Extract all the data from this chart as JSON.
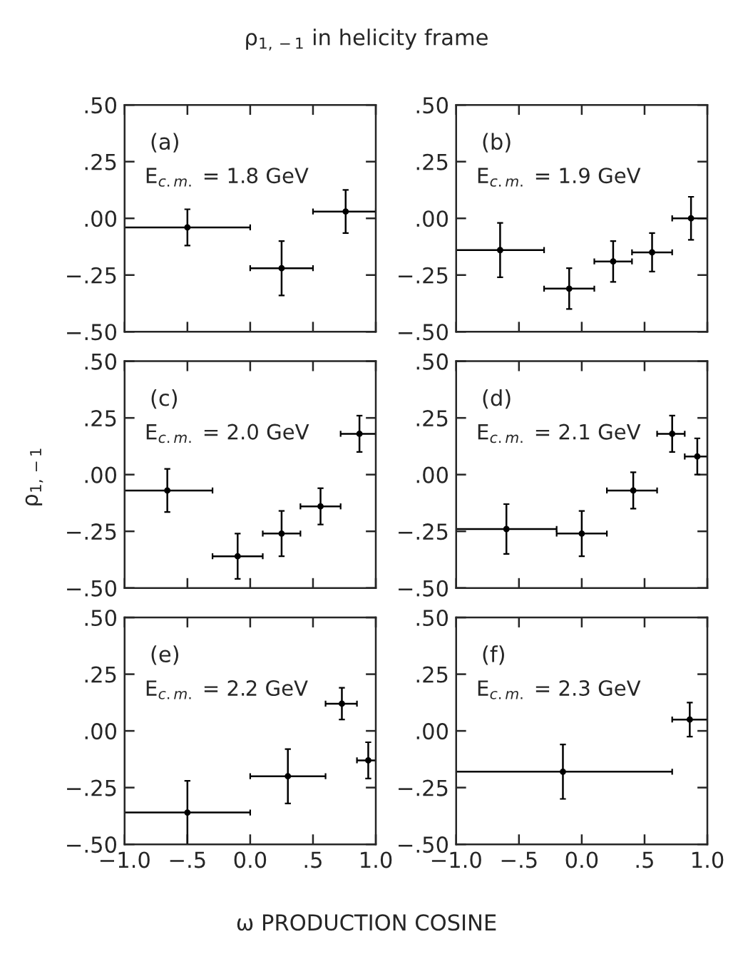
{
  "chart_data": [
    {
      "type": "scatter",
      "title": "ρ$_{1,−1}$ in helicity frame",
      "ylabel": "ρ$_{1,−1}$",
      "xlabel": "ω PRODUCTION COSINE",
      "annotations": [
        "(a)",
        "E$_{c.m.}$ = 1.8 GeV"
      ],
      "marker": "circle",
      "tick_labels": "y",
      "xlim": [
        -1.0,
        1.0
      ],
      "ylim": [
        -0.5,
        0.5
      ],
      "xticks": [
        {
          "value": -1.0,
          "label": null
        },
        {
          "value": -0.5,
          "label": null
        },
        {
          "value": 0.0,
          "label": null
        },
        {
          "value": 0.5,
          "label": null
        },
        {
          "value": 1.0,
          "label": null
        }
      ],
      "yticks": [
        {
          "value": -0.5,
          "label": "−.50"
        },
        {
          "value": -0.25,
          "label": "−.25"
        },
        {
          "value": 0.0,
          "label": ".00"
        },
        {
          "value": 0.25,
          "label": ".25"
        },
        {
          "value": 0.5,
          "label": ".50"
        }
      ],
      "series": [
        {
          "color": "#000000",
          "x": [
            -0.5,
            0.25,
            0.76
          ],
          "values": [
            -0.04,
            -0.22,
            0.03
          ],
          "errors": [
            0.08,
            0.12,
            0.095
          ],
          "xerrors": [
            [
              -1.0,
              0.0
            ],
            [
              0.0,
              0.5
            ],
            [
              0.5,
              1.0
            ]
          ]
        }
      ]
    },
    {
      "type": "scatter",
      "annotations": [
        "(b)",
        "E$_{c.m.}$ = 1.9 GeV"
      ],
      "marker": "circle",
      "tick_labels": "y",
      "xlim": [
        -1.0,
        1.0
      ],
      "ylim": [
        -0.5,
        0.5
      ],
      "xticks": [
        {
          "value": -1.0,
          "label": null
        },
        {
          "value": -0.5,
          "label": null
        },
        {
          "value": 0.0,
          "label": null
        },
        {
          "value": 0.5,
          "label": null
        },
        {
          "value": 1.0,
          "label": null
        }
      ],
      "yticks": [
        {
          "value": -0.5,
          "label": "−.50"
        },
        {
          "value": -0.25,
          "label": "−.25"
        },
        {
          "value": 0.0,
          "label": ".00"
        },
        {
          "value": 0.25,
          "label": ".25"
        },
        {
          "value": 0.5,
          "label": ".50"
        }
      ],
      "series": [
        {
          "color": "#000000",
          "x": [
            -0.65,
            -0.1,
            0.25,
            0.56,
            0.87
          ],
          "values": [
            -0.14,
            -0.31,
            -0.19,
            -0.15,
            0.0
          ],
          "errors": [
            0.12,
            0.09,
            0.09,
            0.085,
            0.095
          ],
          "xerrors": [
            [
              -1.0,
              -0.3
            ],
            [
              -0.3,
              0.1
            ],
            [
              0.1,
              0.4
            ],
            [
              0.4,
              0.72
            ],
            [
              0.72,
              1.0
            ]
          ]
        }
      ]
    },
    {
      "type": "scatter",
      "annotations": [
        "(c)",
        "E$_{c.m.}$ = 2.0 GeV"
      ],
      "marker": "circle",
      "tick_labels": "y",
      "xlim": [
        -1.0,
        1.0
      ],
      "ylim": [
        -0.5,
        0.5
      ],
      "xticks": [
        {
          "value": -1.0,
          "label": null
        },
        {
          "value": -0.5,
          "label": null
        },
        {
          "value": 0.0,
          "label": null
        },
        {
          "value": 0.5,
          "label": null
        },
        {
          "value": 1.0,
          "label": null
        }
      ],
      "yticks": [
        {
          "value": -0.5,
          "label": "−.50"
        },
        {
          "value": -0.25,
          "label": "−.25"
        },
        {
          "value": 0.0,
          "label": ".00"
        },
        {
          "value": 0.25,
          "label": ".25"
        },
        {
          "value": 0.5,
          "label": ".50"
        }
      ],
      "series": [
        {
          "color": "#000000",
          "x": [
            -0.66,
            -0.1,
            0.25,
            0.56,
            0.87
          ],
          "values": [
            -0.07,
            -0.36,
            -0.26,
            -0.14,
            0.18
          ],
          "errors": [
            0.095,
            0.1,
            0.1,
            0.08,
            0.08
          ],
          "xerrors": [
            [
              -1.0,
              -0.3
            ],
            [
              -0.3,
              0.1
            ],
            [
              0.1,
              0.4
            ],
            [
              0.4,
              0.72
            ],
            [
              0.72,
              1.0
            ]
          ]
        }
      ]
    },
    {
      "type": "scatter",
      "annotations": [
        "(d)",
        "E$_{c.m.}$ = 2.1 GeV"
      ],
      "marker": "circle",
      "tick_labels": "y",
      "xlim": [
        -1.0,
        1.0
      ],
      "ylim": [
        -0.5,
        0.5
      ],
      "xticks": [
        {
          "value": -1.0,
          "label": null
        },
        {
          "value": -0.5,
          "label": null
        },
        {
          "value": 0.0,
          "label": null
        },
        {
          "value": 0.5,
          "label": null
        },
        {
          "value": 1.0,
          "label": null
        }
      ],
      "yticks": [
        {
          "value": -0.5,
          "label": "−.50"
        },
        {
          "value": -0.25,
          "label": "−.25"
        },
        {
          "value": 0.0,
          "label": ".00"
        },
        {
          "value": 0.25,
          "label": ".25"
        },
        {
          "value": 0.5,
          "label": ".50"
        }
      ],
      "series": [
        {
          "color": "#000000",
          "x": [
            -0.6,
            0.0,
            0.41,
            0.72,
            0.92
          ],
          "values": [
            -0.24,
            -0.26,
            -0.07,
            0.18,
            0.08
          ],
          "errors": [
            0.11,
            0.1,
            0.08,
            0.08,
            0.08
          ],
          "xerrors": [
            [
              -1.0,
              -0.2
            ],
            [
              -0.2,
              0.2
            ],
            [
              0.2,
              0.6
            ],
            [
              0.6,
              0.82
            ],
            [
              0.82,
              1.0
            ]
          ]
        }
      ]
    },
    {
      "type": "scatter",
      "annotations": [
        "(e)",
        "E$_{c.m.}$ = 2.2 GeV"
      ],
      "marker": "circle",
      "xlim": [
        -1.0,
        1.0
      ],
      "ylim": [
        -0.5,
        0.5
      ],
      "xticks": [
        {
          "value": -1.0,
          "label": "−1.0"
        },
        {
          "value": -0.5,
          "label": "−.5"
        },
        {
          "value": 0.0,
          "label": "0.0"
        },
        {
          "value": 0.5,
          "label": ".5"
        },
        {
          "value": 1.0,
          "label": "1.0"
        }
      ],
      "yticks": [
        {
          "value": -0.5,
          "label": "−.50"
        },
        {
          "value": -0.25,
          "label": "−.25"
        },
        {
          "value": 0.0,
          "label": ".00"
        },
        {
          "value": 0.25,
          "label": ".25"
        },
        {
          "value": 0.5,
          "label": ".50"
        }
      ],
      "series": [
        {
          "color": "#000000",
          "x": [
            -0.5,
            0.3,
            0.73,
            0.94
          ],
          "values": [
            -0.36,
            -0.2,
            0.12,
            -0.13
          ],
          "errors": [
            0.14,
            0.12,
            0.07,
            0.08
          ],
          "xerrors": [
            [
              -1.0,
              0.0
            ],
            [
              0.0,
              0.6
            ],
            [
              0.6,
              0.85
            ],
            [
              0.85,
              1.0
            ]
          ]
        }
      ]
    },
    {
      "type": "scatter",
      "annotations": [
        "(f)",
        "E$_{c.m.}$ = 2.3 GeV"
      ],
      "marker": "circle",
      "xlim": [
        -1.0,
        1.0
      ],
      "ylim": [
        -0.5,
        0.5
      ],
      "xticks": [
        {
          "value": -1.0,
          "label": "−1.0"
        },
        {
          "value": -0.5,
          "label": "−.5"
        },
        {
          "value": 0.0,
          "label": "0.0"
        },
        {
          "value": 0.5,
          "label": ".5"
        },
        {
          "value": 1.0,
          "label": "1.0"
        }
      ],
      "yticks": [
        {
          "value": -0.5,
          "label": "−.50"
        },
        {
          "value": -0.25,
          "label": "−.25"
        },
        {
          "value": 0.0,
          "label": ".00"
        },
        {
          "value": 0.25,
          "label": ".25"
        },
        {
          "value": 0.5,
          "label": ".50"
        }
      ],
      "series": [
        {
          "color": "#000000",
          "x": [
            -0.15,
            0.86
          ],
          "values": [
            -0.18,
            0.05
          ],
          "errors": [
            0.12,
            0.075
          ],
          "xerrors": [
            [
              -1.0,
              0.72
            ],
            [
              0.72,
              1.0
            ]
          ]
        }
      ]
    }
  ]
}
